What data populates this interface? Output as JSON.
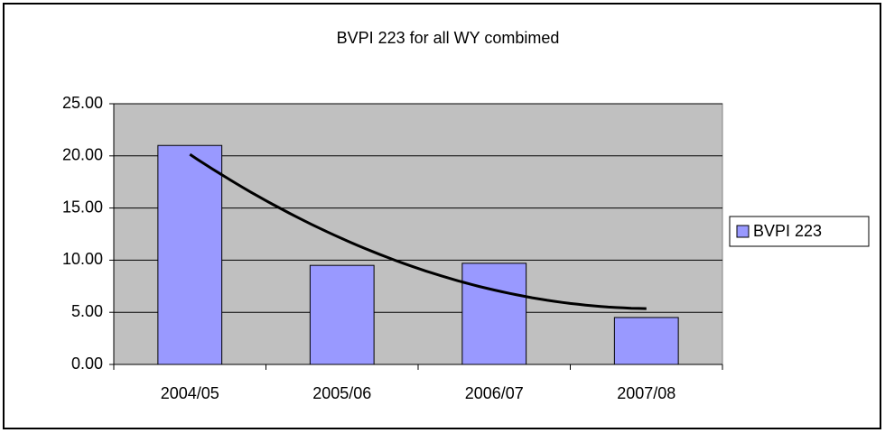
{
  "chart_data": {
    "type": "bar",
    "title": "BVPI 223 for all WY combimed",
    "categories": [
      "2004/05",
      "2005/06",
      "2006/07",
      "2007/08"
    ],
    "series": [
      {
        "name": "BVPI 223",
        "color": "#9999ff",
        "values": [
          21.0,
          9.5,
          9.7,
          4.5
        ]
      }
    ],
    "ylim": [
      0,
      25
    ],
    "yticks": [
      {
        "value": 0,
        "label": "0.00"
      },
      {
        "value": 5,
        "label": "5.00"
      },
      {
        "value": 10,
        "label": "10.00"
      },
      {
        "value": 15,
        "label": "15.00"
      },
      {
        "value": 20,
        "label": "20.00"
      },
      {
        "value": 25,
        "label": "25.00"
      }
    ],
    "grid": true,
    "plot_background": "#c0c0c0",
    "legend": "right",
    "trendline": {
      "type": "polynomial",
      "order": 2,
      "color": "#000000"
    }
  }
}
